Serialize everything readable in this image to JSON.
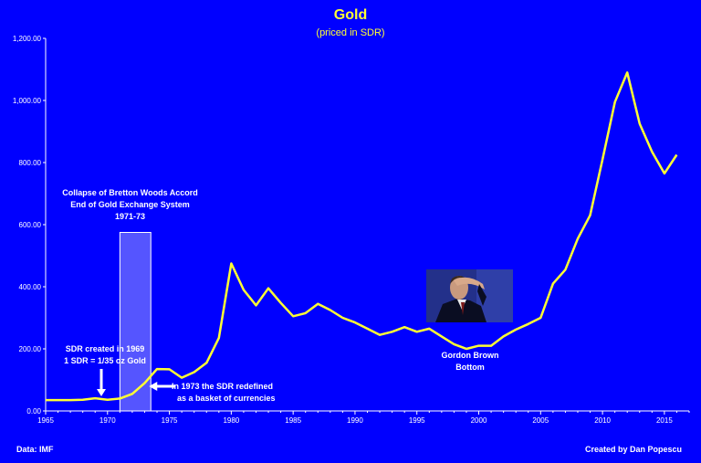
{
  "title": "Gold",
  "subtitle": "(priced in SDR)",
  "footer": {
    "source": "Data: IMF",
    "credit": "Created by Dan Popescu"
  },
  "annotations": {
    "collapse": [
      "Collapse of Bretton Woods Accord",
      "End of Gold Exchange System",
      "1971-73"
    ],
    "sdr_created": [
      "SDR created in 1969",
      "1 SDR = 1/35 oz Gold"
    ],
    "sdr_redefined": [
      "In 1973 the SDR redefined",
      "as a basket of currencies"
    ],
    "bottom": [
      "Gordon  Brown",
      "Bottom"
    ]
  },
  "colors": {
    "background": "#0000ff",
    "line": "#ffff33",
    "text": "#ffffff",
    "highlight": "#5555ff"
  },
  "chart_data": {
    "type": "line",
    "title": "Gold",
    "subtitle": "(priced in SDR)",
    "xlim": [
      1965,
      2017
    ],
    "ylim": [
      0,
      1200
    ],
    "x_ticks": [
      "1965",
      "1970",
      "1975",
      "1980",
      "1985",
      "1990",
      "1995",
      "2000",
      "2005",
      "2010",
      "2015"
    ],
    "y_ticks": [
      "0.00",
      "200.00",
      "400.00",
      "600.00",
      "800.00",
      "1,000.00",
      "1,200.00"
    ],
    "highlight_range": [
      1971,
      1973.5
    ],
    "highlight_top": 575,
    "series": [
      {
        "x": [
          1965,
          1966,
          1967,
          1968,
          1969,
          1970,
          1971,
          1972,
          1973,
          1974,
          1975,
          1976,
          1977,
          1978,
          1979,
          1980,
          1981,
          1982,
          1983,
          1984,
          1985,
          1986,
          1987,
          1988,
          1989,
          1990,
          1991,
          1992,
          1993,
          1994,
          1995,
          1996,
          1997,
          1998,
          1999,
          2000,
          2001,
          2002,
          2003,
          2004,
          2005,
          2006,
          2007,
          2008,
          2009,
          2010,
          2011,
          2012,
          2013,
          2014,
          2015,
          2016
        ],
        "values": [
          35,
          35,
          35,
          36,
          41,
          36,
          40,
          55,
          90,
          135,
          134,
          107,
          125,
          155,
          235,
          475,
          390,
          340,
          395,
          348,
          305,
          315,
          345,
          325,
          300,
          285,
          265,
          245,
          255,
          270,
          255,
          265,
          240,
          215,
          200,
          210,
          210,
          240,
          262,
          280,
          300,
          410,
          455,
          555,
          630,
          810,
          995,
          1090,
          925,
          835,
          765,
          825
        ]
      }
    ]
  }
}
